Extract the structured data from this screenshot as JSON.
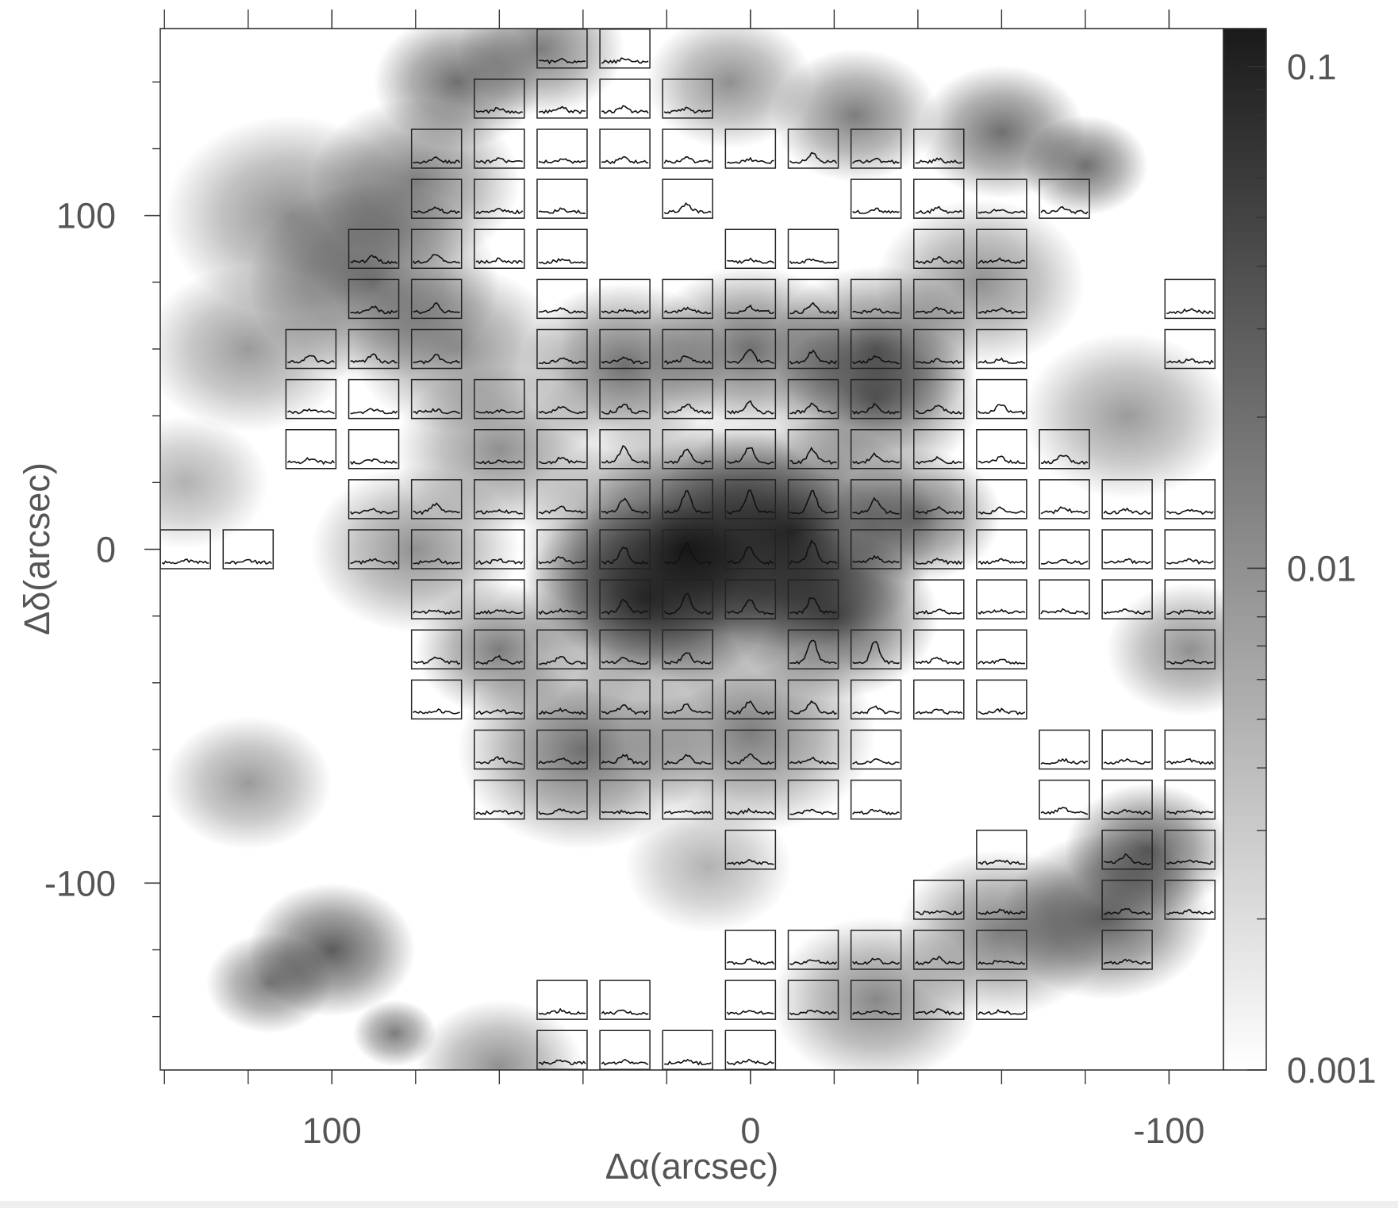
{
  "chart_data": {
    "type": "spectral-map",
    "x_label": "Δα(arcsec)",
    "y_label": "Δδ(arcsec)",
    "xlim": [
      141,
      -113
    ],
    "ylim": [
      -156,
      156
    ],
    "xticks": [
      100,
      0,
      -100
    ],
    "xminorticks": [
      140,
      120,
      80,
      60,
      40,
      20,
      -20,
      -40,
      -60,
      -80
    ],
    "yticks": [
      100,
      0,
      -100
    ],
    "yminorticks": [
      140,
      120,
      80,
      60,
      40,
      20,
      -20,
      -40,
      -60,
      -80,
      -120,
      -140
    ],
    "colorbar": {
      "log": true,
      "lim": [
        0.001,
        0.119
      ],
      "ticks": [
        0.1,
        0.01,
        0.001
      ],
      "minorticks": [
        0.002,
        0.003,
        0.004,
        0.005,
        0.006,
        0.007,
        0.008,
        0.009,
        0.02,
        0.03,
        0.04,
        0.05,
        0.06,
        0.07,
        0.08,
        0.09
      ]
    },
    "clumps": [
      [
        15,
        0,
        40,
        0.08
      ],
      [
        -10,
        5,
        35,
        0.06
      ],
      [
        25,
        -15,
        30,
        0.04
      ],
      [
        -20,
        -20,
        25,
        0.04
      ],
      [
        90,
        80,
        30,
        0.02
      ],
      [
        110,
        100,
        30,
        0.01
      ],
      [
        80,
        110,
        25,
        0.015
      ],
      [
        70,
        140,
        20,
        0.02
      ],
      [
        50,
        150,
        20,
        0.015
      ],
      [
        120,
        60,
        25,
        0.008
      ],
      [
        70,
        60,
        25,
        0.01
      ],
      [
        60,
        30,
        25,
        0.01
      ],
      [
        80,
        0,
        25,
        0.01
      ],
      [
        5,
        140,
        20,
        0.01
      ],
      [
        -25,
        130,
        20,
        0.015
      ],
      [
        -60,
        125,
        20,
        0.02
      ],
      [
        -80,
        115,
        15,
        0.02
      ],
      [
        -55,
        80,
        25,
        0.01
      ],
      [
        -30,
        60,
        25,
        0.02
      ],
      [
        -90,
        40,
        25,
        0.008
      ],
      [
        -105,
        -30,
        20,
        0.01
      ],
      [
        -95,
        -90,
        20,
        0.03
      ],
      [
        -85,
        -110,
        25,
        0.03
      ],
      [
        -60,
        -115,
        25,
        0.015
      ],
      [
        -30,
        -135,
        25,
        0.012
      ],
      [
        120,
        -70,
        20,
        0.008
      ],
      [
        100,
        -120,
        20,
        0.03
      ],
      [
        115,
        -130,
        15,
        0.015
      ],
      [
        85,
        -145,
        10,
        0.015
      ],
      [
        60,
        -155,
        20,
        0.01
      ],
      [
        40,
        -60,
        30,
        0.02
      ],
      [
        0,
        -55,
        30,
        0.015
      ],
      [
        10,
        -95,
        20,
        0.005
      ],
      [
        135,
        20,
        20,
        0.005
      ],
      [
        30,
        55,
        25,
        0.02
      ],
      [
        0,
        60,
        25,
        0.02
      ],
      [
        -30,
        45,
        25,
        0.02
      ],
      [
        -40,
        10,
        20,
        0.02
      ],
      [
        60,
        -30,
        20,
        0.015
      ]
    ],
    "spectra": [
      [
        45,
        150,
        0.1
      ],
      [
        30,
        150,
        0.1
      ],
      [
        60,
        135,
        0.15
      ],
      [
        45,
        135,
        0.2
      ],
      [
        30,
        135,
        0.2
      ],
      [
        15,
        135,
        0.15
      ],
      [
        75,
        120,
        0.15
      ],
      [
        60,
        120,
        0.1
      ],
      [
        45,
        120,
        0.1
      ],
      [
        30,
        120,
        0.15
      ],
      [
        15,
        120,
        0.15
      ],
      [
        0,
        120,
        0.1
      ],
      [
        -15,
        120,
        0.3
      ],
      [
        -30,
        120,
        0.1
      ],
      [
        -45,
        120,
        0.1
      ],
      [
        75,
        105,
        0.2
      ],
      [
        60,
        105,
        0.1
      ],
      [
        45,
        105,
        0.1
      ],
      [
        15,
        105,
        0.3
      ],
      [
        -30,
        105,
        0.1
      ],
      [
        -45,
        105,
        0.15
      ],
      [
        -60,
        105,
        0.1
      ],
      [
        -75,
        105,
        0.15
      ],
      [
        90,
        90,
        0.2
      ],
      [
        75,
        90,
        0.3
      ],
      [
        60,
        90,
        0.1
      ],
      [
        45,
        90,
        0.1
      ],
      [
        0,
        90,
        0.1
      ],
      [
        -15,
        90,
        0.1
      ],
      [
        -45,
        90,
        0.15
      ],
      [
        -60,
        90,
        0.1
      ],
      [
        90,
        75,
        0.2
      ],
      [
        75,
        75,
        0.3
      ],
      [
        45,
        75,
        0.15
      ],
      [
        30,
        75,
        0.1
      ],
      [
        15,
        75,
        0.15
      ],
      [
        0,
        75,
        0.2
      ],
      [
        -15,
        75,
        0.3
      ],
      [
        -30,
        75,
        0.1
      ],
      [
        -45,
        75,
        0.15
      ],
      [
        -60,
        75,
        0.1
      ],
      [
        -105,
        75,
        0.1
      ],
      [
        105,
        60,
        0.3
      ],
      [
        90,
        60,
        0.3
      ],
      [
        75,
        60,
        0.25
      ],
      [
        45,
        60,
        0.15
      ],
      [
        30,
        60,
        0.2
      ],
      [
        15,
        60,
        0.25
      ],
      [
        0,
        60,
        0.5
      ],
      [
        -15,
        60,
        0.4
      ],
      [
        -30,
        60,
        0.2
      ],
      [
        -45,
        60,
        0.1
      ],
      [
        -60,
        60,
        0.1
      ],
      [
        -105,
        60,
        0.1
      ],
      [
        105,
        45,
        0.1
      ],
      [
        90,
        45,
        0.1
      ],
      [
        75,
        45,
        0.1
      ],
      [
        60,
        45,
        0.05
      ],
      [
        45,
        45,
        0.2
      ],
      [
        30,
        45,
        0.3
      ],
      [
        15,
        45,
        0.3
      ],
      [
        0,
        45,
        0.4
      ],
      [
        -15,
        45,
        0.3
      ],
      [
        -30,
        45,
        0.3
      ],
      [
        -45,
        45,
        0.3
      ],
      [
        -60,
        45,
        0.3
      ],
      [
        105,
        30,
        0.15
      ],
      [
        90,
        30,
        0.1
      ],
      [
        60,
        30,
        0.05
      ],
      [
        45,
        30,
        0.15
      ],
      [
        30,
        30,
        0.6
      ],
      [
        15,
        30,
        0.5
      ],
      [
        0,
        30,
        0.6
      ],
      [
        -15,
        30,
        0.5
      ],
      [
        -30,
        30,
        0.3
      ],
      [
        -45,
        30,
        0.2
      ],
      [
        -60,
        30,
        0.2
      ],
      [
        -75,
        30,
        0.3
      ],
      [
        90,
        15,
        0.1
      ],
      [
        75,
        15,
        0.3
      ],
      [
        60,
        15,
        0.1
      ],
      [
        45,
        15,
        0.2
      ],
      [
        30,
        15,
        0.5
      ],
      [
        15,
        15,
        0.8
      ],
      [
        0,
        15,
        0.8
      ],
      [
        -15,
        15,
        0.8
      ],
      [
        -30,
        15,
        0.5
      ],
      [
        -45,
        15,
        0.2
      ],
      [
        -60,
        15,
        0.15
      ],
      [
        -75,
        15,
        0.2
      ],
      [
        -90,
        15,
        0.1
      ],
      [
        -105,
        15,
        0.1
      ],
      [
        135,
        0,
        0.1
      ],
      [
        120,
        0,
        0.1
      ],
      [
        90,
        0,
        0.1
      ],
      [
        75,
        0,
        0.1
      ],
      [
        60,
        0,
        0.1
      ],
      [
        45,
        0,
        0.2
      ],
      [
        30,
        0,
        0.6
      ],
      [
        15,
        0,
        0.7
      ],
      [
        0,
        0,
        0.6
      ],
      [
        -15,
        0,
        0.8
      ],
      [
        -30,
        0,
        0.2
      ],
      [
        -45,
        0,
        0.1
      ],
      [
        -60,
        0,
        0.1
      ],
      [
        -75,
        0,
        0.1
      ],
      [
        -90,
        0,
        0.1
      ],
      [
        -105,
        0,
        0.15
      ],
      [
        75,
        -15,
        0.1
      ],
      [
        60,
        -15,
        0.1
      ],
      [
        45,
        -15,
        0.1
      ],
      [
        30,
        -15,
        0.5
      ],
      [
        15,
        -15,
        0.7
      ],
      [
        0,
        -15,
        0.5
      ],
      [
        -15,
        -15,
        0.6
      ],
      [
        -45,
        -15,
        0.1
      ],
      [
        -60,
        -15,
        0.1
      ],
      [
        -75,
        -15,
        0.1
      ],
      [
        -90,
        -15,
        0.1
      ],
      [
        -105,
        -15,
        0.1
      ],
      [
        75,
        -30,
        0.2
      ],
      [
        60,
        -30,
        0.2
      ],
      [
        45,
        -30,
        0.2
      ],
      [
        30,
        -30,
        0.2
      ],
      [
        15,
        -30,
        0.4
      ],
      [
        -15,
        -30,
        0.9
      ],
      [
        -30,
        -30,
        0.8
      ],
      [
        -45,
        -30,
        0.2
      ],
      [
        -60,
        -30,
        0.1
      ],
      [
        -105,
        -30,
        0.1
      ],
      [
        75,
        -45,
        0.1
      ],
      [
        60,
        -45,
        0.1
      ],
      [
        45,
        -45,
        0.1
      ],
      [
        30,
        -45,
        0.3
      ],
      [
        15,
        -45,
        0.3
      ],
      [
        0,
        -45,
        0.4
      ],
      [
        -15,
        -45,
        0.4
      ],
      [
        -30,
        -45,
        0.2
      ],
      [
        -45,
        -45,
        0.1
      ],
      [
        -60,
        -45,
        0.1
      ],
      [
        60,
        -60,
        0.2
      ],
      [
        45,
        -60,
        0.2
      ],
      [
        30,
        -60,
        0.3
      ],
      [
        15,
        -60,
        0.3
      ],
      [
        0,
        -60,
        0.3
      ],
      [
        -15,
        -60,
        0.2
      ],
      [
        -30,
        -60,
        0.1
      ],
      [
        -75,
        -60,
        0.1
      ],
      [
        -90,
        -60,
        0.1
      ],
      [
        -105,
        -60,
        0.1
      ],
      [
        60,
        -75,
        0.1
      ],
      [
        45,
        -75,
        0.1
      ],
      [
        30,
        -75,
        0.05
      ],
      [
        15,
        -75,
        0.1
      ],
      [
        0,
        -75,
        0.1
      ],
      [
        -15,
        -75,
        0.1
      ],
      [
        -30,
        -75,
        0.1
      ],
      [
        -75,
        -75,
        0.2
      ],
      [
        -90,
        -75,
        0.1
      ],
      [
        -105,
        -75,
        0.1
      ],
      [
        0,
        -90,
        0.1
      ],
      [
        -60,
        -90,
        0.1
      ],
      [
        -90,
        -90,
        0.3
      ],
      [
        -105,
        -90,
        0.1
      ],
      [
        -45,
        -105,
        0.1
      ],
      [
        -60,
        -105,
        0.1
      ],
      [
        -90,
        -105,
        0.15
      ],
      [
        -105,
        -105,
        0.1
      ],
      [
        0,
        -120,
        0.1
      ],
      [
        -15,
        -120,
        0.15
      ],
      [
        -30,
        -120,
        0.15
      ],
      [
        -45,
        -120,
        0.2
      ],
      [
        -60,
        -120,
        0.1
      ],
      [
        -90,
        -120,
        0.1
      ],
      [
        45,
        -135,
        0.1
      ],
      [
        30,
        -135,
        0.1
      ],
      [
        0,
        -135,
        0.1
      ],
      [
        -15,
        -135,
        0.1
      ],
      [
        -30,
        -135,
        0.1
      ],
      [
        -45,
        -135,
        0.1
      ],
      [
        -60,
        -135,
        0.1
      ],
      [
        45,
        -150,
        0.1
      ],
      [
        30,
        -150,
        0.1
      ],
      [
        15,
        -150,
        0.1
      ],
      [
        0,
        -150,
        0.1
      ]
    ]
  }
}
